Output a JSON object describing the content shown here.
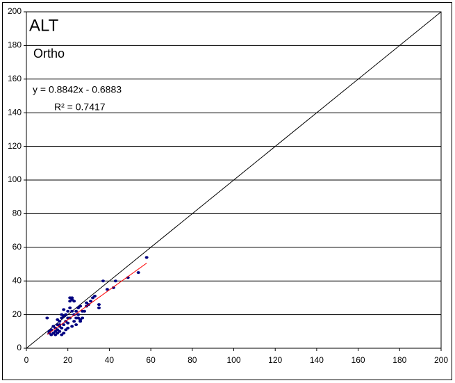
{
  "chart_data": {
    "type": "scatter",
    "title": "ALT",
    "subtitle": "Ortho",
    "annotations": [
      "y = 0.8842x - 0.6883",
      "R² = 0.7417"
    ],
    "x": [
      58,
      54,
      49,
      43,
      42,
      39,
      37,
      35,
      35,
      33,
      31,
      30,
      29,
      28,
      27,
      26,
      26,
      25,
      25,
      24,
      24,
      23,
      22,
      22,
      21,
      21,
      21,
      20,
      20,
      20,
      19,
      19,
      18,
      18,
      18,
      17,
      17,
      17,
      16,
      16,
      16,
      15,
      15,
      15,
      15,
      14,
      14,
      14,
      13,
      13,
      12,
      12,
      11,
      11,
      10,
      22,
      23,
      19,
      20,
      24,
      26,
      25,
      18,
      17,
      16,
      23,
      22,
      21,
      27,
      29,
      32
    ],
    "values": [
      54,
      45,
      42,
      40,
      36,
      35,
      40,
      26,
      24,
      31,
      28,
      26,
      27,
      22,
      22,
      17,
      16,
      20,
      24,
      18,
      22,
      20,
      29,
      30,
      30,
      28,
      24,
      22,
      18,
      15,
      20,
      16,
      23,
      19,
      14,
      20,
      18,
      12,
      16,
      13,
      10,
      17,
      14,
      11,
      9,
      12,
      10,
      8,
      13,
      9,
      11,
      8,
      10,
      9,
      18,
      13,
      16,
      11,
      12,
      14,
      25,
      18,
      9,
      8,
      14,
      28,
      22,
      18,
      18,
      25,
      30
    ],
    "color": "#000080",
    "trendline": {
      "slope": 0.8842,
      "intercept": -0.6883,
      "x_range": [
        10,
        58
      ],
      "color": "#ff0000"
    },
    "xlim": [
      0,
      200
    ],
    "ylim": [
      0,
      200
    ],
    "xticks": [
      0,
      20,
      40,
      60,
      80,
      100,
      120,
      140,
      160,
      180,
      200
    ],
    "yticks": [
      0,
      20,
      40,
      60,
      80,
      100,
      120,
      140,
      160,
      180,
      200
    ],
    "grid": true
  }
}
